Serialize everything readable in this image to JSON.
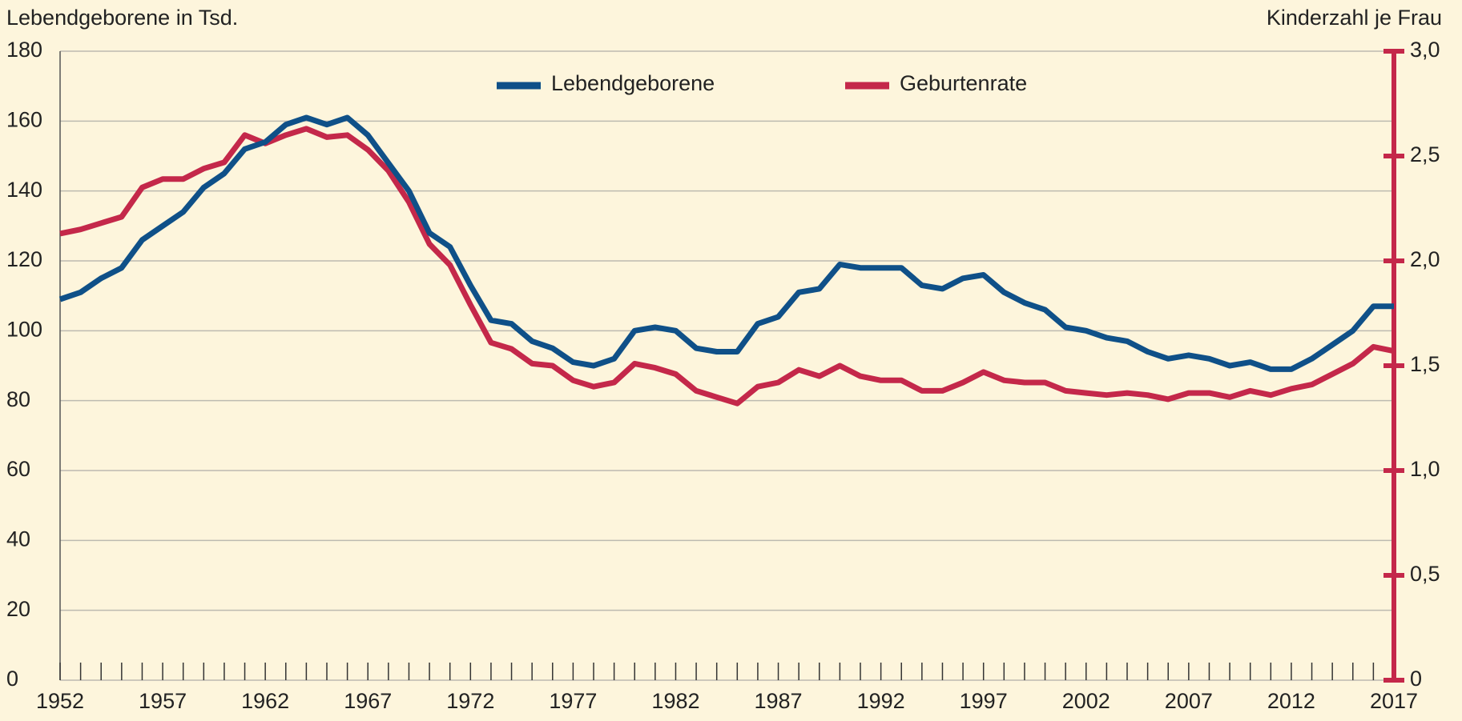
{
  "chart_data": {
    "type": "line",
    "y_label": "Lebendgeborene in Tsd.",
    "y2_label": "Kinderzahl je Frau",
    "x": [
      1952,
      1953,
      1954,
      1955,
      1956,
      1957,
      1958,
      1959,
      1960,
      1961,
      1962,
      1963,
      1964,
      1965,
      1966,
      1967,
      1968,
      1969,
      1970,
      1971,
      1972,
      1973,
      1974,
      1975,
      1976,
      1977,
      1978,
      1979,
      1980,
      1981,
      1982,
      1983,
      1984,
      1985,
      1986,
      1987,
      1988,
      1989,
      1990,
      1991,
      1992,
      1993,
      1994,
      1995,
      1996,
      1997,
      1998,
      1999,
      2000,
      2001,
      2002,
      2003,
      2004,
      2005,
      2006,
      2007,
      2008,
      2009,
      2010,
      2011,
      2012,
      2013,
      2014,
      2015,
      2016,
      2017
    ],
    "xlim": [
      1952,
      2017
    ],
    "xticks": [
      1952,
      1957,
      1962,
      1967,
      1972,
      1977,
      1982,
      1987,
      1992,
      1997,
      2002,
      2007,
      2012,
      2017
    ],
    "ylim": [
      0,
      180
    ],
    "yticks": [
      0,
      20,
      40,
      60,
      80,
      100,
      120,
      140,
      160,
      180
    ],
    "y2lim": [
      0,
      3
    ],
    "y2ticks": [
      0,
      {
        "value": 0.5,
        "label": "0,5"
      },
      {
        "value": 1,
        "label": "1,0"
      },
      {
        "value": 1.5,
        "label": "1,5"
      },
      {
        "value": 2,
        "label": "2,0"
      },
      {
        "value": 2.5,
        "label": "2,5"
      },
      {
        "value": 3,
        "label": "3,0"
      }
    ],
    "grid": true,
    "legend": "top",
    "series": [
      {
        "name": "Lebendgeborene",
        "color": "#0f5088",
        "values": [
          109,
          111,
          115,
          118,
          126,
          130,
          134,
          141,
          145,
          152,
          154,
          159,
          161,
          159,
          161,
          156,
          148,
          140,
          128,
          124,
          113,
          103,
          102,
          97,
          95,
          91,
          90,
          92,
          100,
          101,
          100,
          95,
          94,
          94,
          102,
          104,
          111,
          112,
          119,
          118,
          118,
          118,
          113,
          112,
          115,
          116,
          111,
          108,
          106,
          101,
          100,
          98,
          97,
          94,
          92,
          93,
          92,
          90,
          91,
          89,
          89,
          92,
          96,
          100,
          107,
          107
        ]
      },
      {
        "name": "Geburtenrate",
        "color": "#c4284a",
        "axis": "y2",
        "values": [
          2.13,
          2.15,
          2.18,
          2.21,
          2.35,
          2.39,
          2.39,
          2.44,
          2.47,
          2.6,
          2.56,
          2.6,
          2.63,
          2.59,
          2.6,
          2.53,
          2.43,
          2.28,
          2.08,
          1.98,
          1.79,
          1.61,
          1.58,
          1.51,
          1.5,
          1.43,
          1.4,
          1.42,
          1.51,
          1.49,
          1.46,
          1.38,
          1.35,
          1.32,
          1.4,
          1.42,
          1.48,
          1.45,
          1.5,
          1.45,
          1.43,
          1.43,
          1.38,
          1.38,
          1.42,
          1.47,
          1.43,
          1.42,
          1.42,
          1.38,
          1.37,
          1.36,
          1.37,
          1.36,
          1.34,
          1.37,
          1.37,
          1.35,
          1.38,
          1.36,
          1.39,
          1.41,
          1.46,
          1.51,
          1.59,
          1.57
        ]
      }
    ]
  }
}
